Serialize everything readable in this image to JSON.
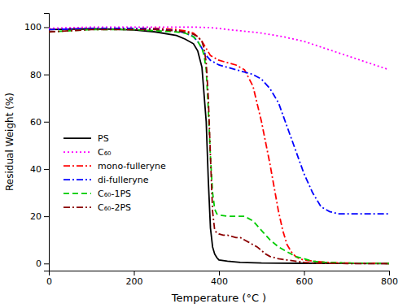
{
  "chart_data": {
    "type": "line",
    "xlabel": "Temperature (°C )",
    "ylabel": "Residual Weight (%)",
    "xlim": [
      0,
      800
    ],
    "ylim": [
      -3,
      106
    ],
    "xticks": [
      0,
      200,
      400,
      600,
      800
    ],
    "yticks": [
      0,
      20,
      40,
      60,
      80,
      100
    ],
    "grid": false,
    "legend": "left",
    "series": [
      {
        "name": "PS",
        "color": "#000000",
        "line_style": "solid",
        "x": [
          0,
          50,
          100,
          150,
          200,
          250,
          300,
          320,
          340,
          350,
          360,
          370,
          375,
          380,
          385,
          390,
          395,
          400,
          420,
          450,
          500,
          600,
          700,
          800
        ],
        "values": [
          99,
          99.2,
          99.3,
          99.2,
          98.8,
          98,
          96.5,
          95,
          93,
          90,
          83,
          60,
          35,
          15,
          7,
          4,
          2.5,
          1.5,
          1,
          0.5,
          0.2,
          0.1,
          0.05,
          0
        ]
      },
      {
        "name": "C₆₀",
        "color": "#ff00ff",
        "line_style": "dotted",
        "x": [
          0,
          50,
          100,
          150,
          200,
          250,
          300,
          350,
          380,
          400,
          420,
          450,
          500,
          550,
          600,
          650,
          700,
          750,
          800
        ],
        "values": [
          99.5,
          99.8,
          100,
          100,
          100,
          100,
          100,
          100,
          99.8,
          99.5,
          99,
          98.5,
          97.5,
          96,
          94,
          91,
          88,
          85,
          82
        ]
      },
      {
        "name": "mono-fulleryne",
        "color": "#ff0000",
        "line_style": "dashdot",
        "x": [
          0,
          50,
          100,
          150,
          200,
          250,
          300,
          320,
          340,
          350,
          360,
          370,
          380,
          390,
          400,
          420,
          440,
          460,
          480,
          500,
          520,
          540,
          550,
          560,
          570,
          580,
          590,
          600,
          620,
          650,
          700,
          800
        ],
        "values": [
          99,
          99.2,
          99.5,
          99.5,
          99.5,
          99.5,
          99,
          98.5,
          97.5,
          96,
          94,
          91,
          88,
          87,
          86,
          85,
          84,
          82,
          75,
          60,
          42,
          22,
          14,
          8,
          5,
          3,
          2,
          1.5,
          1,
          0.5,
          0.2,
          0
        ]
      },
      {
        "name": "di-fulleryne",
        "color": "#0000ff",
        "line_style": "dashdot",
        "x": [
          0,
          50,
          100,
          150,
          200,
          250,
          300,
          320,
          340,
          350,
          360,
          370,
          380,
          390,
          400,
          420,
          440,
          460,
          480,
          500,
          520,
          540,
          560,
          580,
          600,
          620,
          640,
          660,
          680,
          700,
          720,
          740,
          760,
          780,
          800
        ],
        "values": [
          99,
          99.2,
          99.5,
          99.5,
          99.5,
          99.2,
          98.5,
          97.5,
          96,
          94,
          91,
          88,
          86,
          85,
          84,
          83,
          82,
          81,
          80,
          78,
          74,
          68,
          58,
          48,
          38,
          30,
          24,
          22,
          21,
          21,
          21,
          21,
          21,
          21,
          21
        ]
      },
      {
        "name": "C₆₀-1PS",
        "color": "#00cc00",
        "line_style": "dashed",
        "x": [
          0,
          50,
          100,
          150,
          200,
          250,
          300,
          320,
          340,
          350,
          360,
          365,
          370,
          375,
          380,
          385,
          390,
          395,
          400,
          420,
          440,
          460,
          480,
          500,
          520,
          540,
          560,
          580,
          600,
          620,
          650,
          700,
          750,
          800
        ],
        "values": [
          98,
          98.5,
          99,
          99,
          99,
          98.5,
          98,
          97.5,
          96,
          94,
          91,
          88,
          82,
          65,
          45,
          30,
          23,
          21,
          20.5,
          20,
          20,
          20,
          18,
          14,
          10,
          7,
          5,
          3,
          2,
          1,
          0.5,
          0.2,
          0.1,
          0
        ]
      },
      {
        "name": "C₆₀-2PS",
        "color": "#8b0000",
        "line_style": "dashdot",
        "x": [
          0,
          50,
          100,
          150,
          200,
          250,
          300,
          320,
          340,
          350,
          360,
          365,
          370,
          375,
          380,
          385,
          390,
          395,
          400,
          410,
          420,
          430,
          440,
          450,
          460,
          470,
          480,
          490,
          500,
          510,
          520,
          540,
          560,
          580,
          600,
          620,
          650,
          700,
          800
        ],
        "values": [
          98,
          98.5,
          99,
          99,
          99,
          99,
          98.5,
          98,
          97,
          96,
          94,
          91,
          85,
          70,
          45,
          22,
          14,
          13,
          12.5,
          12,
          12,
          11.5,
          11,
          11,
          10,
          9,
          8,
          7,
          5.5,
          4,
          3,
          2,
          1.5,
          1,
          0.5,
          0.2,
          0.1,
          0,
          0
        ]
      }
    ]
  }
}
